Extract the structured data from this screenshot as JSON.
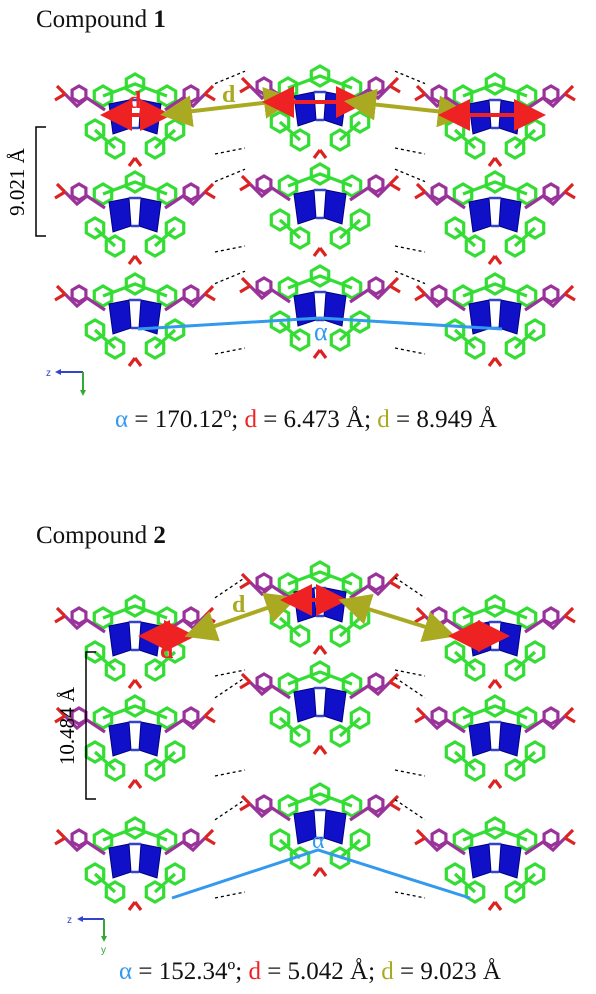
{
  "panels": [
    {
      "title_text": "Compound ",
      "title_number": "1",
      "spacing_label": "9.021 Å",
      "alpha_symbol": "α",
      "d_symbol": "d",
      "caption": {
        "alpha_sym": "α",
        "alpha_value": " = 170.12º; ",
        "d1_sym": "d",
        "d1_value": " = 6.473 Å; ",
        "d2_sym": "d",
        "d2_value": " = 8.949 Å"
      },
      "axes": {
        "z": "z",
        "y": "y"
      },
      "arc_angle_deg": 170.12
    },
    {
      "title_text": "Compound ",
      "title_number": "2",
      "spacing_label": "10.484 Å",
      "alpha_symbol": "α",
      "d_symbol": "d",
      "caption": {
        "alpha_sym": "α",
        "alpha_value": " = 152.34º; ",
        "d1_sym": "d",
        "d1_value": " = 5.042 Å; ",
        "d2_sym": "d",
        "d2_value": " = 9.023 Å"
      },
      "axes": {
        "z": "z",
        "y": "y"
      },
      "arc_angle_deg": 152.34
    }
  ],
  "colors": {
    "alpha": "#3399ee",
    "d_red": "#ee2222",
    "d_olive": "#aaaa22",
    "ring_green": "#33dd33",
    "linker_purple": "#993399",
    "polyhedron_blue": "#1010c8",
    "oxygen_red": "#dd2222",
    "nitrogen_blue": "#3344cc"
  }
}
